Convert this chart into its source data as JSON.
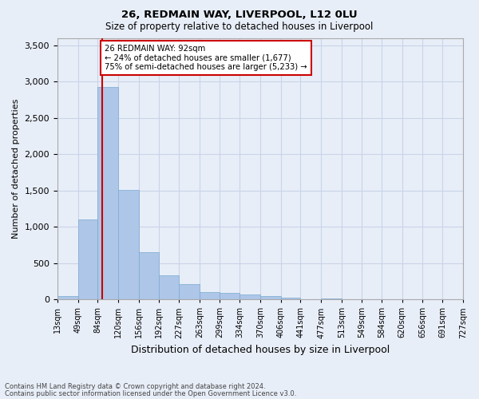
{
  "title1": "26, REDMAIN WAY, LIVERPOOL, L12 0LU",
  "title2": "Size of property relative to detached houses in Liverpool",
  "xlabel": "Distribution of detached houses by size in Liverpool",
  "ylabel": "Number of detached properties",
  "bins": [
    "13sqm",
    "49sqm",
    "84sqm",
    "120sqm",
    "156sqm",
    "192sqm",
    "227sqm",
    "263sqm",
    "299sqm",
    "334sqm",
    "370sqm",
    "406sqm",
    "441sqm",
    "477sqm",
    "513sqm",
    "549sqm",
    "584sqm",
    "620sqm",
    "656sqm",
    "691sqm",
    "727sqm"
  ],
  "bin_edges": [
    13,
    49,
    84,
    120,
    156,
    192,
    227,
    263,
    299,
    334,
    370,
    406,
    441,
    477,
    513,
    549,
    584,
    620,
    656,
    691,
    727
  ],
  "values": [
    50,
    1100,
    2920,
    1510,
    650,
    330,
    210,
    100,
    90,
    65,
    40,
    20,
    5,
    10,
    5,
    5,
    5,
    3,
    3,
    2
  ],
  "bar_color": "#aec6e8",
  "bar_edge_color": "#7aaad0",
  "property_line_x": 92,
  "property_line_color": "#cc0000",
  "annotation_text": "26 REDMAIN WAY: 92sqm\n← 24% of detached houses are smaller (1,677)\n75% of semi-detached houses are larger (5,233) →",
  "annotation_box_color": "#ffffff",
  "annotation_box_edge": "#cc0000",
  "ylim": [
    0,
    3600
  ],
  "yticks": [
    0,
    500,
    1000,
    1500,
    2000,
    2500,
    3000,
    3500
  ],
  "footer1": "Contains HM Land Registry data © Crown copyright and database right 2024.",
  "footer2": "Contains public sector information licensed under the Open Government Licence v3.0.",
  "grid_color": "#c8d4e8",
  "bg_color": "#e8eef8"
}
